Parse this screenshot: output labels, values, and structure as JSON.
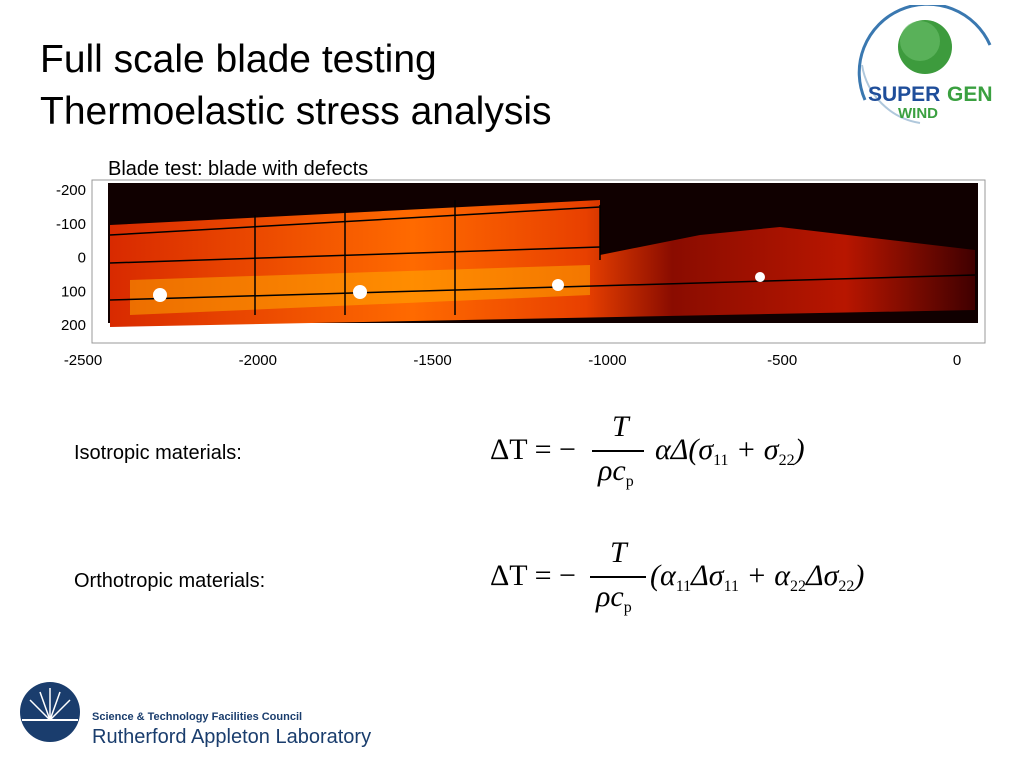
{
  "header": {
    "title_lines": [
      "Full scale blade testing",
      "Thermoelastic stress analysis"
    ],
    "logo_text": [
      "SUPER",
      "GEN",
      "WIND"
    ]
  },
  "figure": {
    "caption": "Blade test: blade with defects",
    "xticks": [
      -2500,
      -2000,
      -1500,
      -1000,
      -500,
      0
    ],
    "yticks": [
      -200,
      -100,
      0,
      100,
      200
    ]
  },
  "equations": [
    {
      "label": "Isotropic materials:",
      "lhs": "ΔT = −",
      "numerator": "T",
      "denominator": "ρc",
      "denominator_sub": "p",
      "rhs": [
        {
          "text": "αΔ(σ",
          "sub": "11"
        },
        {
          "text": " + σ",
          "sub": "22"
        },
        {
          "text": ")"
        }
      ]
    },
    {
      "label": "Orthotropic materials:",
      "lhs": "ΔT = −",
      "numerator": "T",
      "denominator": "ρc",
      "denominator_sub": "p",
      "rhs": [
        {
          "text": "(α",
          "sub": "11"
        },
        {
          "text": "Δσ",
          "sub": "11"
        },
        {
          "text": " + α",
          "sub": "22"
        },
        {
          "text": "Δσ",
          "sub": "22"
        },
        {
          "text": ")"
        }
      ]
    }
  ],
  "footer": {
    "council": "Science & Technology Facilities Council",
    "lab": "Rutherford Appleton Laboratory"
  }
}
